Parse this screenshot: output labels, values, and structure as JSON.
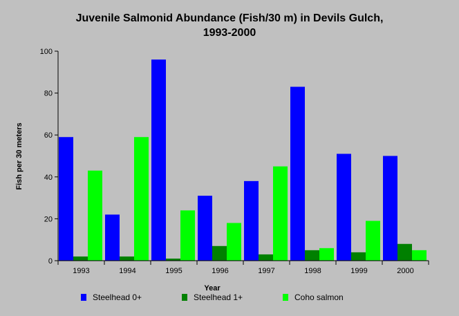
{
  "chart_data": {
    "type": "bar",
    "title_lines": [
      "Juvenile Salmonid Abundance (Fish/30 m) in Devils Gulch,",
      "1993-2000"
    ],
    "xlabel": "Year",
    "ylabel": "Fish per 30 meters",
    "categories": [
      "1993",
      "1994",
      "1995",
      "1996",
      "1997",
      "1998",
      "1999",
      "2000"
    ],
    "ylim": [
      0,
      100
    ],
    "yticks": [
      "0",
      "20",
      "40",
      "60",
      "80",
      "100"
    ],
    "ytick_values": [
      0,
      20,
      40,
      60,
      80,
      100
    ],
    "grid": false,
    "legend_position": "bottom",
    "series": [
      {
        "name": "Steelhead 0+",
        "color": "#0000ff",
        "values": [
          59,
          22,
          96,
          31,
          38,
          83,
          51,
          50
        ]
      },
      {
        "name": "Steelhead 1+",
        "color": "#008000",
        "values": [
          2,
          2,
          1,
          7,
          3,
          5,
          4,
          8
        ]
      },
      {
        "name": "Coho salmon",
        "color": "#00ff00",
        "values": [
          43,
          59,
          24,
          18,
          45,
          6,
          19,
          5
        ]
      }
    ]
  }
}
